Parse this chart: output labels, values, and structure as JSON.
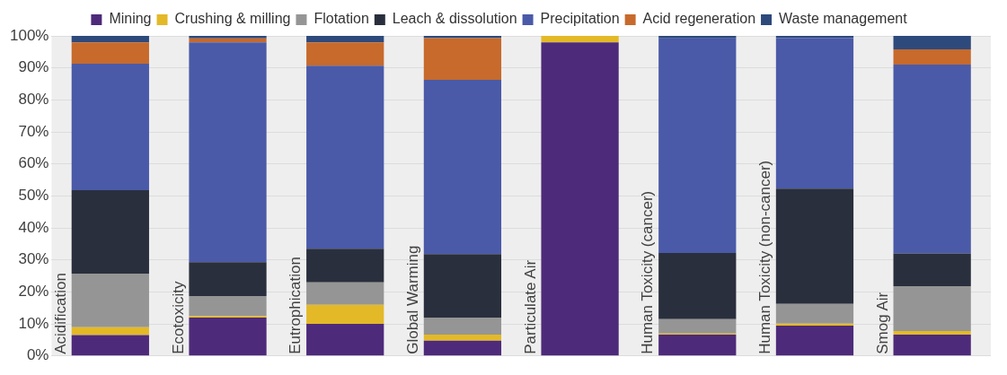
{
  "chart_data": {
    "type": "bar",
    "stacked": true,
    "categories": [
      "Acidification",
      "Ecotoxicity",
      "Eutrophication",
      "Global Warming",
      "Particulate Air",
      "Human Toxicity (cancer)",
      "Human Toxicity (non-cancer)",
      "Smog Air"
    ],
    "series": [
      {
        "name": "Mining",
        "color": "#4e2a7a",
        "values": [
          6.5,
          12,
          10,
          4.8,
          98,
          6.7,
          9.5,
          6.7
        ]
      },
      {
        "name": "Crushing & milling",
        "color": "#e3b928",
        "values": [
          2.5,
          0.5,
          6,
          1.9,
          2,
          0.3,
          0.6,
          1.1
        ]
      },
      {
        "name": "Flotation",
        "color": "#959595",
        "values": [
          16.7,
          6.2,
          7,
          5.3,
          0,
          4.5,
          6.2,
          14
        ]
      },
      {
        "name": "Leach & dissolution",
        "color": "#2a2f3d",
        "values": [
          26.1,
          10.6,
          10.5,
          19.8,
          0,
          20.7,
          36,
          10.2
        ]
      },
      {
        "name": "Precipitation",
        "color": "#4a5aa8",
        "values": [
          39.5,
          68.7,
          57.2,
          54.5,
          0,
          67,
          47,
          59
        ]
      },
      {
        "name": "Acid regeneration",
        "color": "#c76a2c",
        "values": [
          6.7,
          1.2,
          7.3,
          13,
          0,
          0,
          0,
          4.8
        ]
      },
      {
        "name": "Waste management",
        "color": "#2e4a7c",
        "values": [
          2,
          0.8,
          2,
          0.7,
          0,
          0.8,
          0.7,
          4.2
        ]
      }
    ],
    "ylim": [
      0,
      100
    ],
    "yticks": [
      {
        "value": 0,
        "label": "0%"
      },
      {
        "value": 10,
        "label": "10%"
      },
      {
        "value": 20,
        "label": "20%"
      },
      {
        "value": 30,
        "label": "30%"
      },
      {
        "value": 40,
        "label": "40%"
      },
      {
        "value": 50,
        "label": "50%"
      },
      {
        "value": 60,
        "label": "60%"
      },
      {
        "value": 70,
        "label": "70%"
      },
      {
        "value": 80,
        "label": "80%"
      },
      {
        "value": 90,
        "label": "90%"
      },
      {
        "value": 100,
        "label": "100%"
      }
    ],
    "grid": "y",
    "legend": "top"
  }
}
